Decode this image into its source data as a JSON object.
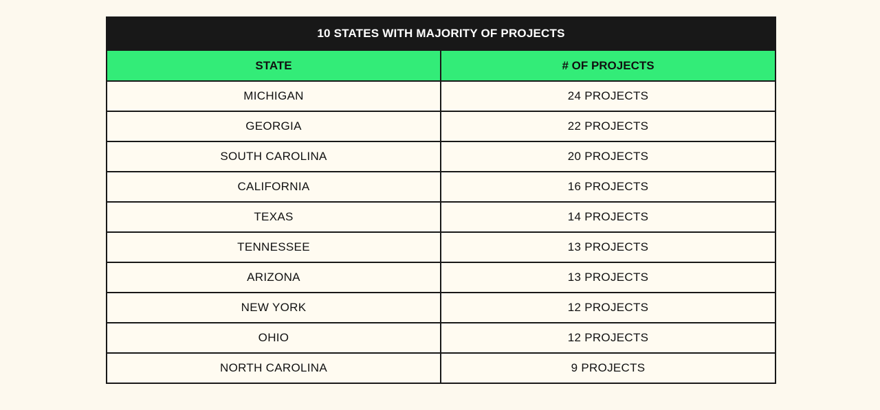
{
  "table": {
    "title": "10 STATES WITH MAJORITY OF PROJECTS",
    "headers": {
      "state": "STATE",
      "projects": "# OF PROJECTS"
    },
    "rows": [
      {
        "state": "MICHIGAN",
        "projects": "24 PROJECTS"
      },
      {
        "state": "GEORGIA",
        "projects": "22 PROJECTS"
      },
      {
        "state": "SOUTH CAROLINA",
        "projects": "20 PROJECTS"
      },
      {
        "state": "CALIFORNIA",
        "projects": "16 PROJECTS"
      },
      {
        "state": "TEXAS",
        "projects": "14 PROJECTS"
      },
      {
        "state": "TENNESSEE",
        "projects": "13 PROJECTS"
      },
      {
        "state": "ARIZONA",
        "projects": "13 PROJECTS"
      },
      {
        "state": "NEW YORK",
        "projects": "12 PROJECTS"
      },
      {
        "state": "OHIO",
        "projects": "12 PROJECTS"
      },
      {
        "state": "NORTH CAROLINA",
        "projects": "9 PROJECTS"
      }
    ]
  },
  "colors": {
    "page_background": "#fdf9ee",
    "title_background": "#181818",
    "header_background": "#33ec78",
    "cell_background": "#fffbf1",
    "border": "#181818"
  }
}
